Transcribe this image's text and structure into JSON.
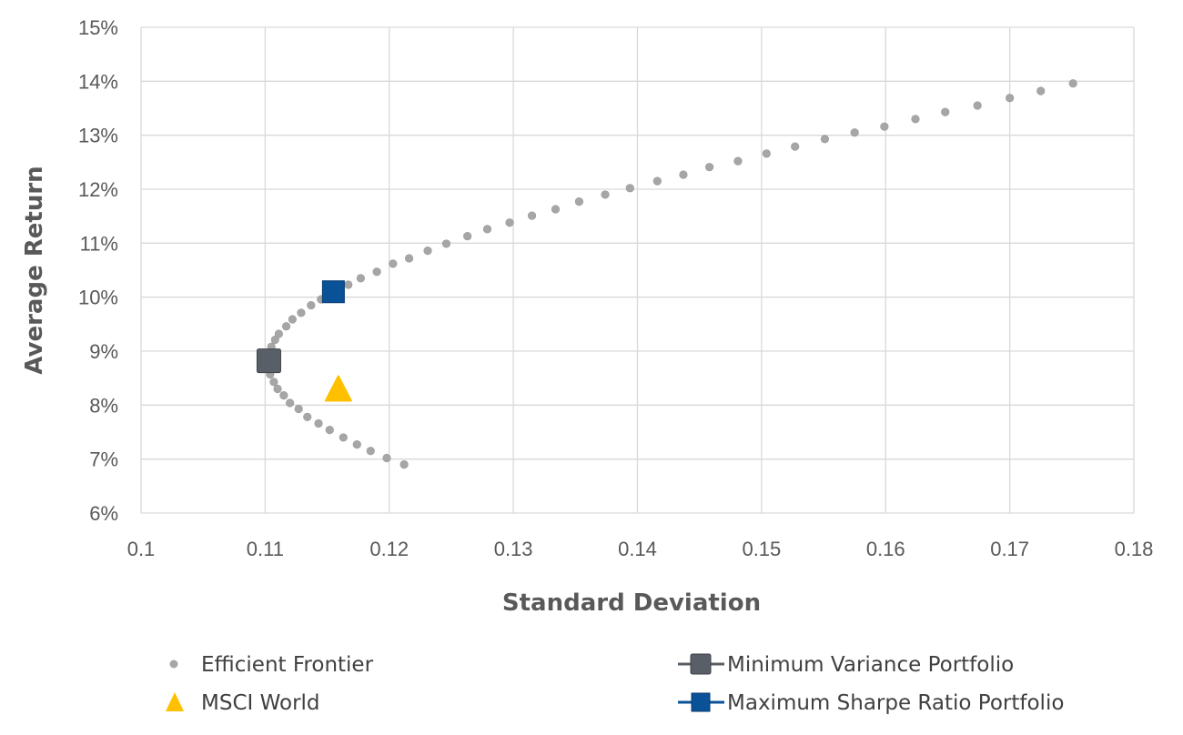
{
  "chart_data": {
    "type": "scatter",
    "xlabel": "Standard Deviation",
    "ylabel": "Average Return",
    "xlim": [
      0.1,
      0.18
    ],
    "ylim": [
      6,
      15
    ],
    "x_ticks": [
      "0.1",
      "0.11",
      "0.12",
      "0.13",
      "0.14",
      "0.15",
      "0.16",
      "0.17",
      "0.18"
    ],
    "y_ticks": [
      "6%",
      "7%",
      "8%",
      "9%",
      "10%",
      "11%",
      "12%",
      "13%",
      "14%",
      "15%"
    ],
    "grid": true,
    "legend_position": "bottom",
    "series": [
      {
        "name": "Efficient Frontier",
        "marker": "circle",
        "color": "#a6a6a6",
        "points": [
          [
            0.1212,
            6.9
          ],
          [
            0.1198,
            7.02
          ],
          [
            0.1185,
            7.15
          ],
          [
            0.1174,
            7.27
          ],
          [
            0.1163,
            7.4
          ],
          [
            0.1152,
            7.54
          ],
          [
            0.1143,
            7.66
          ],
          [
            0.1134,
            7.78
          ],
          [
            0.1127,
            7.93
          ],
          [
            0.112,
            8.04
          ],
          [
            0.1115,
            8.18
          ],
          [
            0.111,
            8.3
          ],
          [
            0.1107,
            8.43
          ],
          [
            0.1104,
            8.57
          ],
          [
            0.1103,
            8.82
          ],
          [
            0.1105,
            9.08
          ],
          [
            0.1108,
            9.21
          ],
          [
            0.1111,
            9.32
          ],
          [
            0.1117,
            9.46
          ],
          [
            0.1122,
            9.59
          ],
          [
            0.1129,
            9.71
          ],
          [
            0.1137,
            9.85
          ],
          [
            0.1145,
            9.96
          ],
          [
            0.1156,
            10.1
          ],
          [
            0.1167,
            10.23
          ],
          [
            0.1177,
            10.35
          ],
          [
            0.119,
            10.47
          ],
          [
            0.1203,
            10.62
          ],
          [
            0.1216,
            10.72
          ],
          [
            0.1231,
            10.86
          ],
          [
            0.1246,
            10.99
          ],
          [
            0.1263,
            11.13
          ],
          [
            0.1279,
            11.26
          ],
          [
            0.1297,
            11.38
          ],
          [
            0.1315,
            11.51
          ],
          [
            0.1334,
            11.63
          ],
          [
            0.1353,
            11.77
          ],
          [
            0.1374,
            11.9
          ],
          [
            0.1394,
            12.02
          ],
          [
            0.1416,
            12.15
          ],
          [
            0.1437,
            12.27
          ],
          [
            0.1458,
            12.41
          ],
          [
            0.1481,
            12.52
          ],
          [
            0.1504,
            12.66
          ],
          [
            0.1527,
            12.79
          ],
          [
            0.1551,
            12.93
          ],
          [
            0.1575,
            13.05
          ],
          [
            0.1599,
            13.16
          ],
          [
            0.1624,
            13.3
          ],
          [
            0.1648,
            13.43
          ],
          [
            0.1674,
            13.55
          ],
          [
            0.17,
            13.69
          ],
          [
            0.1725,
            13.82
          ],
          [
            0.1751,
            13.96
          ]
        ]
      },
      {
        "name": "MSCI World",
        "marker": "triangle",
        "color": "#ffc000",
        "points": [
          [
            0.1159,
            8.25
          ]
        ]
      },
      {
        "name": "Minimum Variance Portfolio",
        "marker": "square",
        "color": "#595f66",
        "points": [
          [
            0.1103,
            8.82
          ]
        ]
      },
      {
        "name": "Maximum Sharpe Ratio Portfolio",
        "marker": "square",
        "color": "#0a5298",
        "points": [
          [
            0.1155,
            10.1
          ]
        ]
      }
    ]
  }
}
